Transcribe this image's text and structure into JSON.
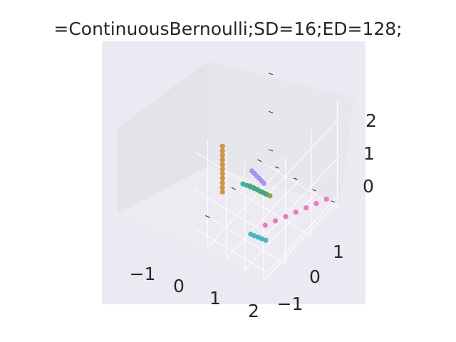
{
  "chart_data": {
    "type": "scatter",
    "projection": "3d",
    "title": "=ContinuousBernoulli;SD=16;ED=128;",
    "xlabel": "",
    "ylabel": "",
    "zlabel": "",
    "x_ticks": [
      "−1",
      "0",
      "1",
      "2"
    ],
    "y_ticks": [
      "−1",
      "0",
      "1"
    ],
    "z_ticks": [
      "0",
      "1",
      "2"
    ],
    "grid": true,
    "legend": "none",
    "style": {
      "pane_color": "#eaeaf2",
      "grid_color": "#ffffff",
      "text_color": "#262626"
    },
    "series": [
      {
        "color": "#d18a2e",
        "points": [
          {
            "x": -0.55,
            "y": 1.45,
            "z": 1.1
          },
          {
            "x": -0.55,
            "y": 1.45,
            "z": 1.22
          },
          {
            "x": -0.55,
            "y": 1.45,
            "z": 1.34
          },
          {
            "x": -0.55,
            "y": 1.45,
            "z": 1.46
          },
          {
            "x": -0.55,
            "y": 1.45,
            "z": 1.58
          },
          {
            "x": -0.55,
            "y": 1.45,
            "z": 1.7
          },
          {
            "x": -0.55,
            "y": 1.45,
            "z": 1.82
          },
          {
            "x": -0.55,
            "y": 1.45,
            "z": 1.94
          },
          {
            "x": -0.55,
            "y": 1.45,
            "z": 2.06
          },
          {
            "x": -0.55,
            "y": 1.45,
            "z": 2.18
          },
          {
            "x": -0.55,
            "y": 1.45,
            "z": 2.3
          }
        ]
      },
      {
        "color": "#8a9a3a",
        "points": [
          {
            "x": -0.95,
            "y": 0.1,
            "z": 0.15
          },
          {
            "x": -0.8,
            "y": 0.08,
            "z": 0.14
          },
          {
            "x": -0.65,
            "y": 0.06,
            "z": 0.12
          },
          {
            "x": -0.5,
            "y": 0.04,
            "z": 0.1
          },
          {
            "x": -0.35,
            "y": 0.02,
            "z": 0.09
          },
          {
            "x": -0.2,
            "y": 0.0,
            "z": 0.08
          },
          {
            "x": -0.05,
            "y": -0.02,
            "z": 0.07
          }
        ]
      },
      {
        "color": "#2fae8f",
        "points": [
          {
            "x": -1.05,
            "y": 0.3,
            "z": 0.32
          },
          {
            "x": -0.85,
            "y": 0.3,
            "z": 0.34
          },
          {
            "x": -0.65,
            "y": 0.3,
            "z": 0.36
          },
          {
            "x": -0.45,
            "y": 0.3,
            "z": 0.38
          },
          {
            "x": -0.25,
            "y": 0.3,
            "z": 0.4
          },
          {
            "x": -0.05,
            "y": 0.3,
            "z": 0.41
          },
          {
            "x": 0.15,
            "y": 0.3,
            "z": 0.42
          }
        ]
      },
      {
        "color": "#3ab0c0",
        "points": [
          {
            "x": 0.55,
            "y": 1.15,
            "z": 0.1
          },
          {
            "x": 0.75,
            "y": 1.15,
            "z": 0.12
          },
          {
            "x": 0.95,
            "y": 1.15,
            "z": 0.14
          },
          {
            "x": 1.15,
            "y": 1.15,
            "z": 0.16
          },
          {
            "x": 1.35,
            "y": 1.15,
            "z": 0.18
          }
        ]
      },
      {
        "color": "#a48cf0",
        "points": [
          {
            "x": -1.55,
            "y": -0.4,
            "z": 0.0
          },
          {
            "x": -1.35,
            "y": -0.35,
            "z": 0.03
          },
          {
            "x": -1.15,
            "y": -0.3,
            "z": 0.06
          },
          {
            "x": -0.95,
            "y": -0.25,
            "z": 0.09
          },
          {
            "x": -0.75,
            "y": -0.2,
            "z": 0.12
          },
          {
            "x": -0.55,
            "y": -0.15,
            "z": 0.15
          }
        ]
      },
      {
        "color": "#f06ab6",
        "points": [
          {
            "x": 0.7,
            "y": 0.7,
            "z": 0.05
          },
          {
            "x": 0.9,
            "y": 0.45,
            "z": 0.04
          },
          {
            "x": 1.1,
            "y": 0.2,
            "z": 0.03
          },
          {
            "x": 1.3,
            "y": -0.05,
            "z": 0.02
          },
          {
            "x": 1.5,
            "y": -0.3,
            "z": 0.01
          },
          {
            "x": 1.7,
            "y": -0.55,
            "z": 0.0
          },
          {
            "x": 1.9,
            "y": -0.8,
            "z": -0.01
          }
        ]
      }
    ]
  }
}
